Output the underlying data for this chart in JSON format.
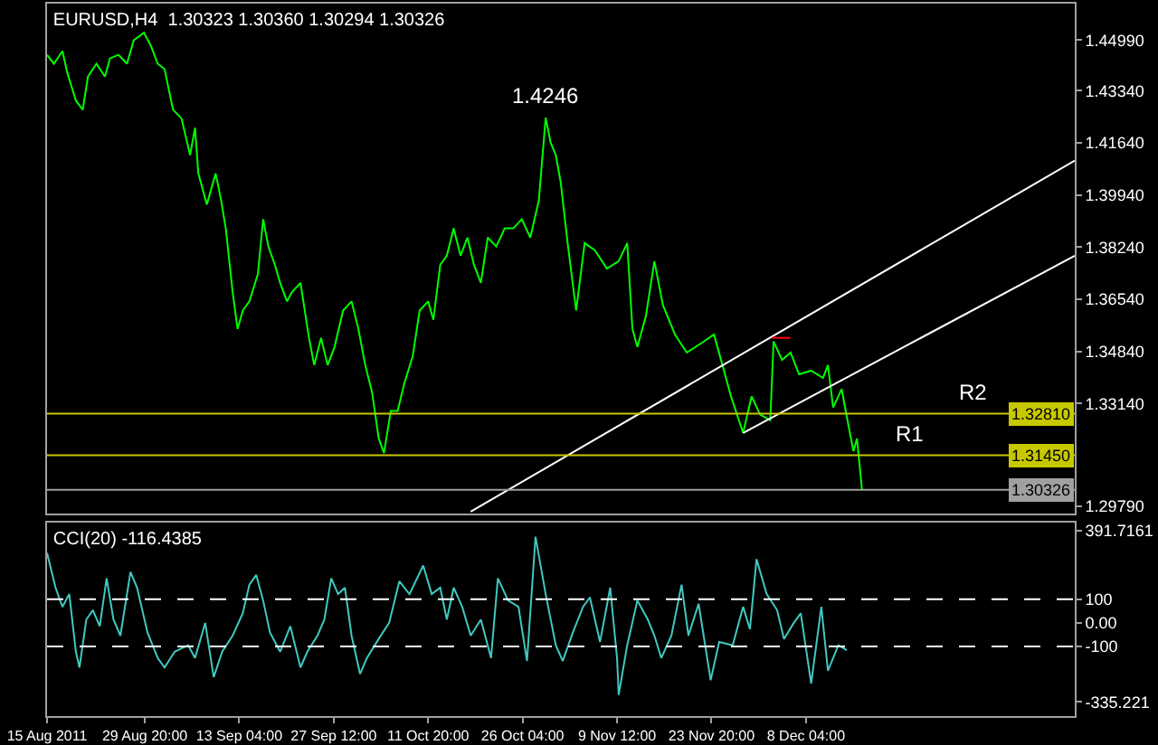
{
  "chart_data": [
    {
      "type": "line",
      "title": "EURUSD,H4  1.30323 1.30360 1.30294 1.30326",
      "xlim": [
        "2011-08-15T00:00",
        "2012-01-17T23:00"
      ],
      "ylim": [
        1.2955,
        1.4618
      ],
      "yticks": [
        {
          "value": 1.4499,
          "label": "1.44990"
        },
        {
          "value": 1.4334,
          "label": "1.43340"
        },
        {
          "value": 1.4164,
          "label": "1.41640"
        },
        {
          "value": 1.3994,
          "label": "1.39940"
        },
        {
          "value": 1.3824,
          "label": "1.38240"
        },
        {
          "value": 1.3654,
          "label": "1.36540"
        },
        {
          "value": 1.3484,
          "label": "1.34840"
        },
        {
          "value": 1.3314,
          "label": "1.33140"
        },
        {
          "value": 1.2979,
          "label": "1.29790"
        }
      ],
      "tick_labels": "y",
      "grid": false,
      "marker": "none",
      "series": [
        {
          "color": "#00ff00",
          "x": [
            "2011-08-15T00:00",
            "2011-08-16T01:00",
            "2011-08-17T08:00",
            "2011-08-18T02:00",
            "2011-08-19T09:00",
            "2011-08-20T10:00",
            "2011-08-21T05:00",
            "2011-08-22T12:00",
            "2011-08-23T19:00",
            "2011-08-24T13:00",
            "2011-08-25T20:00",
            "2011-08-27T03:00",
            "2011-08-28T04:00",
            "2011-08-29T17:00",
            "2011-08-30T18:00",
            "2011-08-31T19:00",
            "2011-09-01T20:00",
            "2011-09-03T03:00",
            "2011-09-04T10:00",
            "2011-09-05T17:00",
            "2011-09-06T11:00",
            "2011-09-06T23:00",
            "2011-09-08T06:00",
            "2011-09-09T14:00",
            "2011-09-10T08:00",
            "2011-09-11T03:00",
            "2011-09-12T04:00",
            "2011-09-12T22:00",
            "2011-09-13T17:00",
            "2011-09-14T17:00",
            "2011-09-16T00:00",
            "2011-09-16T19:00",
            "2011-09-17T14:00",
            "2011-09-18T14:00",
            "2011-09-19T09:00",
            "2011-09-20T10:00",
            "2011-09-21T04:00",
            "2011-09-22T11:00",
            "2011-09-23T18:00",
            "2011-09-24T13:00",
            "2011-09-25T14:00",
            "2011-09-26T14:00",
            "2011-09-27T15:00",
            "2011-09-28T22:00",
            "2011-09-30T05:00",
            "2011-10-01T06:00",
            "2011-10-02T07:00",
            "2011-10-03T08:00",
            "2011-10-04T08:00",
            "2011-10-05T03:00",
            "2011-10-06T04:00",
            "2011-10-07T05:00",
            "2011-10-08T05:00",
            "2011-10-09T12:00",
            "2011-10-10T13:00",
            "2011-10-11T20:00",
            "2011-10-12T15:00",
            "2011-10-13T16:00",
            "2011-10-14T16:00",
            "2011-10-15T17:00",
            "2011-10-16T18:00",
            "2011-10-17T19:00",
            "2011-10-18T19:00",
            "2011-10-19T20:00",
            "2011-10-20T21:00",
            "2011-10-22T04:00",
            "2011-10-23T11:00",
            "2011-10-24T18:00",
            "2011-10-26T01:00",
            "2011-10-27T08:00",
            "2011-10-28T15:00",
            "2011-10-29T16:00",
            "2011-10-30T10:00",
            "2011-10-31T05:00",
            "2011-10-31T23:00",
            "2011-11-02T00:00",
            "2011-11-03T07:00",
            "2011-11-04T14:00",
            "2011-11-06T03:00",
            "2011-11-07T23:00",
            "2011-11-09T18:00",
            "2011-11-11T01:00",
            "2011-11-11T20:00",
            "2011-11-12T14:00",
            "2011-11-13T21:00",
            "2011-11-15T04:00",
            "2011-11-16T11:00",
            "2011-11-18T07:00",
            "2011-11-20T02:00",
            "2011-11-22T16:00",
            "2011-11-24T05:00",
            "2011-11-25T12:00",
            "2011-11-26T19:00",
            "2011-11-28T15:00",
            "2011-11-29T22:00",
            "2011-12-01T05:00",
            "2011-12-02T18:00",
            "2011-12-03T06:00",
            "2011-12-04T13:00",
            "2011-12-05T20:00",
            "2011-12-07T03:00",
            "2011-12-08T23:00",
            "2011-12-10T18:00",
            "2011-12-11T12:00",
            "2011-12-12T07:00",
            "2011-12-13T14:00",
            "2011-12-14T15:00",
            "2011-12-15T09:00",
            "2011-12-15T22:00",
            "2011-12-16T16:00"
          ],
          "values": [
            1.4451,
            1.4422,
            1.4463,
            1.4392,
            1.4302,
            1.4272,
            1.438,
            1.4422,
            1.438,
            1.4439,
            1.4451,
            1.4422,
            1.4499,
            1.4523,
            1.4481,
            1.4422,
            1.4404,
            1.4272,
            1.4243,
            1.4124,
            1.4213,
            1.4064,
            1.3963,
            1.4064,
            1.3986,
            1.3885,
            1.3677,
            1.3557,
            1.3617,
            1.3647,
            1.3736,
            1.3915,
            1.3826,
            1.3766,
            1.3707,
            1.3647,
            1.3677,
            1.3707,
            1.3528,
            1.3439,
            1.3528,
            1.3439,
            1.3498,
            1.3617,
            1.3647,
            1.3557,
            1.3439,
            1.3349,
            1.32,
            1.3152,
            1.329,
            1.329,
            1.3379,
            1.3469,
            1.3617,
            1.3647,
            1.3587,
            1.3766,
            1.3796,
            1.3885,
            1.3796,
            1.3855,
            1.3766,
            1.3707,
            1.3855,
            1.3826,
            1.3885,
            1.3885,
            1.3915,
            1.3855,
            1.3975,
            1.4246,
            1.4165,
            1.4124,
            1.4034,
            1.3837,
            1.3617,
            1.3837,
            1.3814,
            1.3754,
            1.3778,
            1.3837,
            1.3557,
            1.3498,
            1.3599,
            1.3778,
            1.3635,
            1.3539,
            1.348,
            1.3516,
            1.3539,
            1.3439,
            1.3337,
            1.3218,
            1.3337,
            1.3278,
            1.3259,
            1.3516,
            1.3456,
            1.348,
            1.3409,
            1.3421,
            1.3397,
            1.3439,
            1.3301,
            1.3361,
            1.3241,
            1.3158,
            1.32,
            1.3033
          ]
        },
        {
          "color": "#ffffff",
          "x": [
            "2011-10-18T07:00",
            "2012-01-17T23:00"
          ],
          "values": [
            1.2961,
            1.4106
          ]
        },
        {
          "color": "#ffffff",
          "x": [
            "2011-11-28T15:00",
            "2012-01-17T23:00"
          ],
          "values": [
            1.3218,
            1.3796
          ]
        },
        {
          "color": "#ff0000",
          "x": [
            "2011-12-03T00:00",
            "2011-12-05T20:00"
          ],
          "values": [
            1.3528,
            1.3528
          ]
        }
      ],
      "ref_lines": [
        {
          "axis": "y",
          "value": 1.3281,
          "label": "1.32810",
          "color": "#c8c800"
        },
        {
          "axis": "y",
          "value": 1.3145,
          "label": "1.31450",
          "color": "#c8c800"
        },
        {
          "axis": "y",
          "value": 1.30326,
          "label": "1.30326",
          "color": "#a0a0a0"
        }
      ],
      "annotations": [
        {
          "text": "1.4246",
          "x": "2011-10-29T16:00",
          "y": 1.4246
        },
        {
          "text": "R2",
          "x": "2012-01-02T11:00",
          "y": 1.3281
        },
        {
          "text": "R1",
          "x": "2011-12-23T22:00",
          "y": 1.3145
        }
      ]
    },
    {
      "type": "line",
      "title": "CCI(20) -116.4385",
      "xlim": [
        "2011-08-15T00:00",
        "2012-01-17T23:00"
      ],
      "ylim": [
        -395,
        425
      ],
      "yticks": [
        {
          "value": 391.7161,
          "label": "391.7161"
        },
        100,
        {
          "value": 0,
          "label": "0.00"
        },
        -100,
        -335.221
      ],
      "xticks": [
        {
          "value": "2011-08-15T00:00",
          "label": "15 Aug 2011"
        },
        {
          "value": "2011-08-29T20:00",
          "label": "29 Aug 20:00"
        },
        {
          "value": "2011-09-13T04:00",
          "label": "13 Sep 04:00"
        },
        {
          "value": "2011-09-27T12:00",
          "label": "27 Sep 12:00"
        },
        {
          "value": "2011-10-11T20:00",
          "label": "11 Oct 20:00"
        },
        {
          "value": "2011-10-26T04:00",
          "label": "26 Oct 04:00"
        },
        {
          "value": "2011-11-09T12:00",
          "label": "9 Nov 12:00"
        },
        {
          "value": "2011-11-23T20:00",
          "label": "23 Nov 20:00"
        },
        {
          "value": "2011-12-08T04:00",
          "label": "8 Dec 04:00"
        }
      ],
      "grid": false,
      "marker": "none",
      "series": [
        {
          "color": "#40c8c0",
          "x": [
            "2011-08-15T00:00",
            "2011-08-16T07:00",
            "2011-08-17T08:00",
            "2011-08-18T09:00",
            "2011-08-19T09:00",
            "2011-08-19T22:00",
            "2011-08-20T23:00",
            "2011-08-21T23:00",
            "2011-08-23T00:00",
            "2011-08-24T01:00",
            "2011-08-25T02:00",
            "2011-08-26T03:00",
            "2011-08-27T16:00",
            "2011-08-28T16:00",
            "2011-08-30T06:00",
            "2011-08-31T19:00",
            "2011-09-01T20:00",
            "2011-09-03T09:00",
            "2011-09-05T10:00",
            "2011-09-06T11:00",
            "2011-09-08T00:00",
            "2011-09-09T07:00",
            "2011-09-10T14:00",
            "2011-09-12T04:00",
            "2011-09-13T17:00",
            "2011-09-14T17:00",
            "2011-09-15T18:00",
            "2011-09-16T19:00",
            "2011-09-17T20:00",
            "2011-09-19T09:00",
            "2011-09-20T22:00",
            "2011-09-22T11:00",
            "2011-09-23T12:00",
            "2011-09-25T01:00",
            "2011-09-26T02:00",
            "2011-09-27T03:00",
            "2011-09-28T04:00",
            "2011-09-29T05:00",
            "2011-09-30T05:00",
            "2011-10-01T12:00",
            "2011-10-02T13:00",
            "2011-10-04T08:00",
            "2011-10-05T22:00",
            "2011-10-07T11:00",
            "2011-10-09T00:00",
            "2011-10-11T02:00",
            "2011-10-12T09:00",
            "2011-10-13T16:00",
            "2011-10-14T16:00",
            "2011-10-15T17:00",
            "2011-10-17T00:00",
            "2011-10-18T07:00",
            "2011-10-19T20:00",
            "2011-10-21T09:00",
            "2011-10-22T10:00",
            "2011-10-23T23:00",
            "2011-10-25T13:00",
            "2011-10-26T20:00",
            "2011-10-28T03:00",
            "2011-10-29T16:00",
            "2011-10-31T05:00",
            "2011-11-01T06:00",
            "2011-11-02T19:00",
            "2011-11-04T08:00",
            "2011-11-05T09:00",
            "2011-11-06T22:00",
            "2011-11-08T11:00",
            "2011-11-09T12:00",
            "2011-11-09T18:00",
            "2011-11-11T01:00",
            "2011-11-12T14:00",
            "2011-11-14T04:00",
            "2011-11-15T04:00",
            "2011-11-16T05:00",
            "2011-11-17T18:00",
            "2011-11-19T07:00",
            "2011-11-20T08:00",
            "2011-11-21T21:00",
            "2011-11-23T17:00",
            "2011-11-25T00:00",
            "2011-11-27T01:00",
            "2011-11-28T15:00",
            "2011-11-29T16:00",
            "2011-11-30T16:00",
            "2011-12-02T05:00",
            "2011-12-03T19:00",
            "2011-12-04T20:00",
            "2011-12-06T08:00",
            "2011-12-07T09:00",
            "2011-12-08T23:00",
            "2011-12-10T12:00",
            "2011-12-11T12:00",
            "2011-12-13T02:00",
            "2011-12-14T09:00"
          ],
          "values": [
            297,
            149,
            68,
            122,
            -122,
            -189,
            14,
            54,
            -14,
            189,
            14,
            -54,
            216,
            149,
            -41,
            -149,
            -189,
            -122,
            -95,
            -149,
            0,
            -230,
            -122,
            -54,
            41,
            162,
            203,
            95,
            -41,
            -122,
            -14,
            -189,
            -122,
            -54,
            14,
            189,
            122,
            149,
            -54,
            -216,
            -149,
            -68,
            0,
            176,
            122,
            243,
            122,
            149,
            14,
            149,
            68,
            -54,
            14,
            -149,
            189,
            95,
            68,
            -162,
            365,
            122,
            -95,
            -162,
            -41,
            68,
            108,
            -81,
            149,
            -149,
            -305,
            -95,
            95,
            14,
            -54,
            -149,
            -54,
            162,
            -54,
            81,
            -243,
            -81,
            -95,
            68,
            -27,
            270,
            122,
            54,
            -68,
            0,
            41,
            -257,
            68,
            -203,
            -95,
            -116
          ]
        }
      ],
      "ref_lines": [
        {
          "axis": "y",
          "value": 100,
          "color": "#ffffff",
          "line_style": "dashed"
        },
        {
          "axis": "y",
          "value": -100,
          "color": "#ffffff",
          "line_style": "dashed"
        }
      ]
    }
  ]
}
